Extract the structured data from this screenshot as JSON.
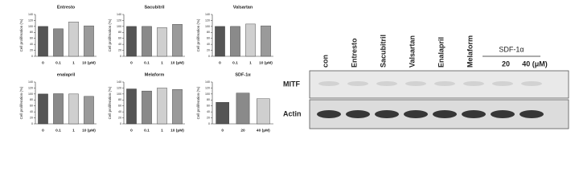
{
  "chart_data": [
    {
      "type": "bar",
      "title": "Entresto",
      "ylabel": "Cell proliferation (%)",
      "categories": [
        "0",
        "0.1",
        "1",
        "10 (μM)"
      ],
      "values": [
        100,
        92,
        115,
        102
      ],
      "colors": [
        "#555555",
        "#8a8a8a",
        "#cfcfcf",
        "#9a9a9a"
      ],
      "ylim": [
        0,
        140
      ],
      "yticks": [
        0,
        20,
        40,
        60,
        80,
        100,
        120,
        140
      ]
    },
    {
      "type": "bar",
      "title": "Sacubitril",
      "ylabel": "Cell proliferation (%)",
      "categories": [
        "0",
        "0.1",
        "1",
        "10 (μM)"
      ],
      "values": [
        100,
        100,
        96,
        107
      ],
      "colors": [
        "#555555",
        "#8a8a8a",
        "#cfcfcf",
        "#9a9a9a"
      ],
      "ylim": [
        0,
        140
      ],
      "yticks": [
        0,
        20,
        40,
        60,
        80,
        100,
        120,
        140
      ]
    },
    {
      "type": "bar",
      "title": "Valsartan",
      "ylabel": "Cell proliferation (%)",
      "categories": [
        "0",
        "0.1",
        "1",
        "10 (μM)"
      ],
      "values": [
        100,
        100,
        108,
        102
      ],
      "colors": [
        "#555555",
        "#8a8a8a",
        "#cfcfcf",
        "#9a9a9a"
      ],
      "ylim": [
        0,
        140
      ],
      "yticks": [
        0,
        20,
        40,
        60,
        80,
        100,
        120,
        140
      ]
    },
    {
      "type": "bar",
      "title": "enalapril",
      "ylabel": "Cell proliferation (%)",
      "categories": [
        "0",
        "0.1",
        "1",
        "10 (μM)"
      ],
      "values": [
        100,
        101,
        100,
        92
      ],
      "colors": [
        "#555555",
        "#8a8a8a",
        "#cfcfcf",
        "#9a9a9a"
      ],
      "ylim": [
        0,
        140
      ],
      "yticks": [
        0,
        20,
        40,
        60,
        80,
        100,
        120,
        140
      ]
    },
    {
      "type": "bar",
      "title": "Melaform",
      "ylabel": "Cell proliferation (%)",
      "categories": [
        "0",
        "0.1",
        "1",
        "10 (μM)"
      ],
      "values": [
        117,
        110,
        120,
        115
      ],
      "colors": [
        "#555555",
        "#8a8a8a",
        "#cfcfcf",
        "#9a9a9a"
      ],
      "ylim": [
        0,
        140
      ],
      "yticks": [
        0,
        20,
        40,
        60,
        80,
        100,
        120,
        140
      ]
    },
    {
      "type": "bar",
      "title": "SDF-1α",
      "ylabel": "Cell proliferation (%)",
      "categories": [
        "0",
        "20",
        "40 (μM)"
      ],
      "values": [
        72,
        103,
        84
      ],
      "colors": [
        "#555555",
        "#8a8a8a",
        "#cfcfcf"
      ],
      "ylim": [
        0,
        140
      ],
      "yticks": [
        0,
        20,
        40,
        60,
        80,
        100,
        120,
        140
      ]
    }
  ],
  "blot": {
    "lanes": [
      "con",
      "Entresto",
      "Sacubitril",
      "Valsartan",
      "Enalapril",
      "Melaform",
      "20",
      "40 (μM)"
    ],
    "group_label": "SDF-1α",
    "rows": [
      "MITF",
      "Actin"
    ]
  }
}
